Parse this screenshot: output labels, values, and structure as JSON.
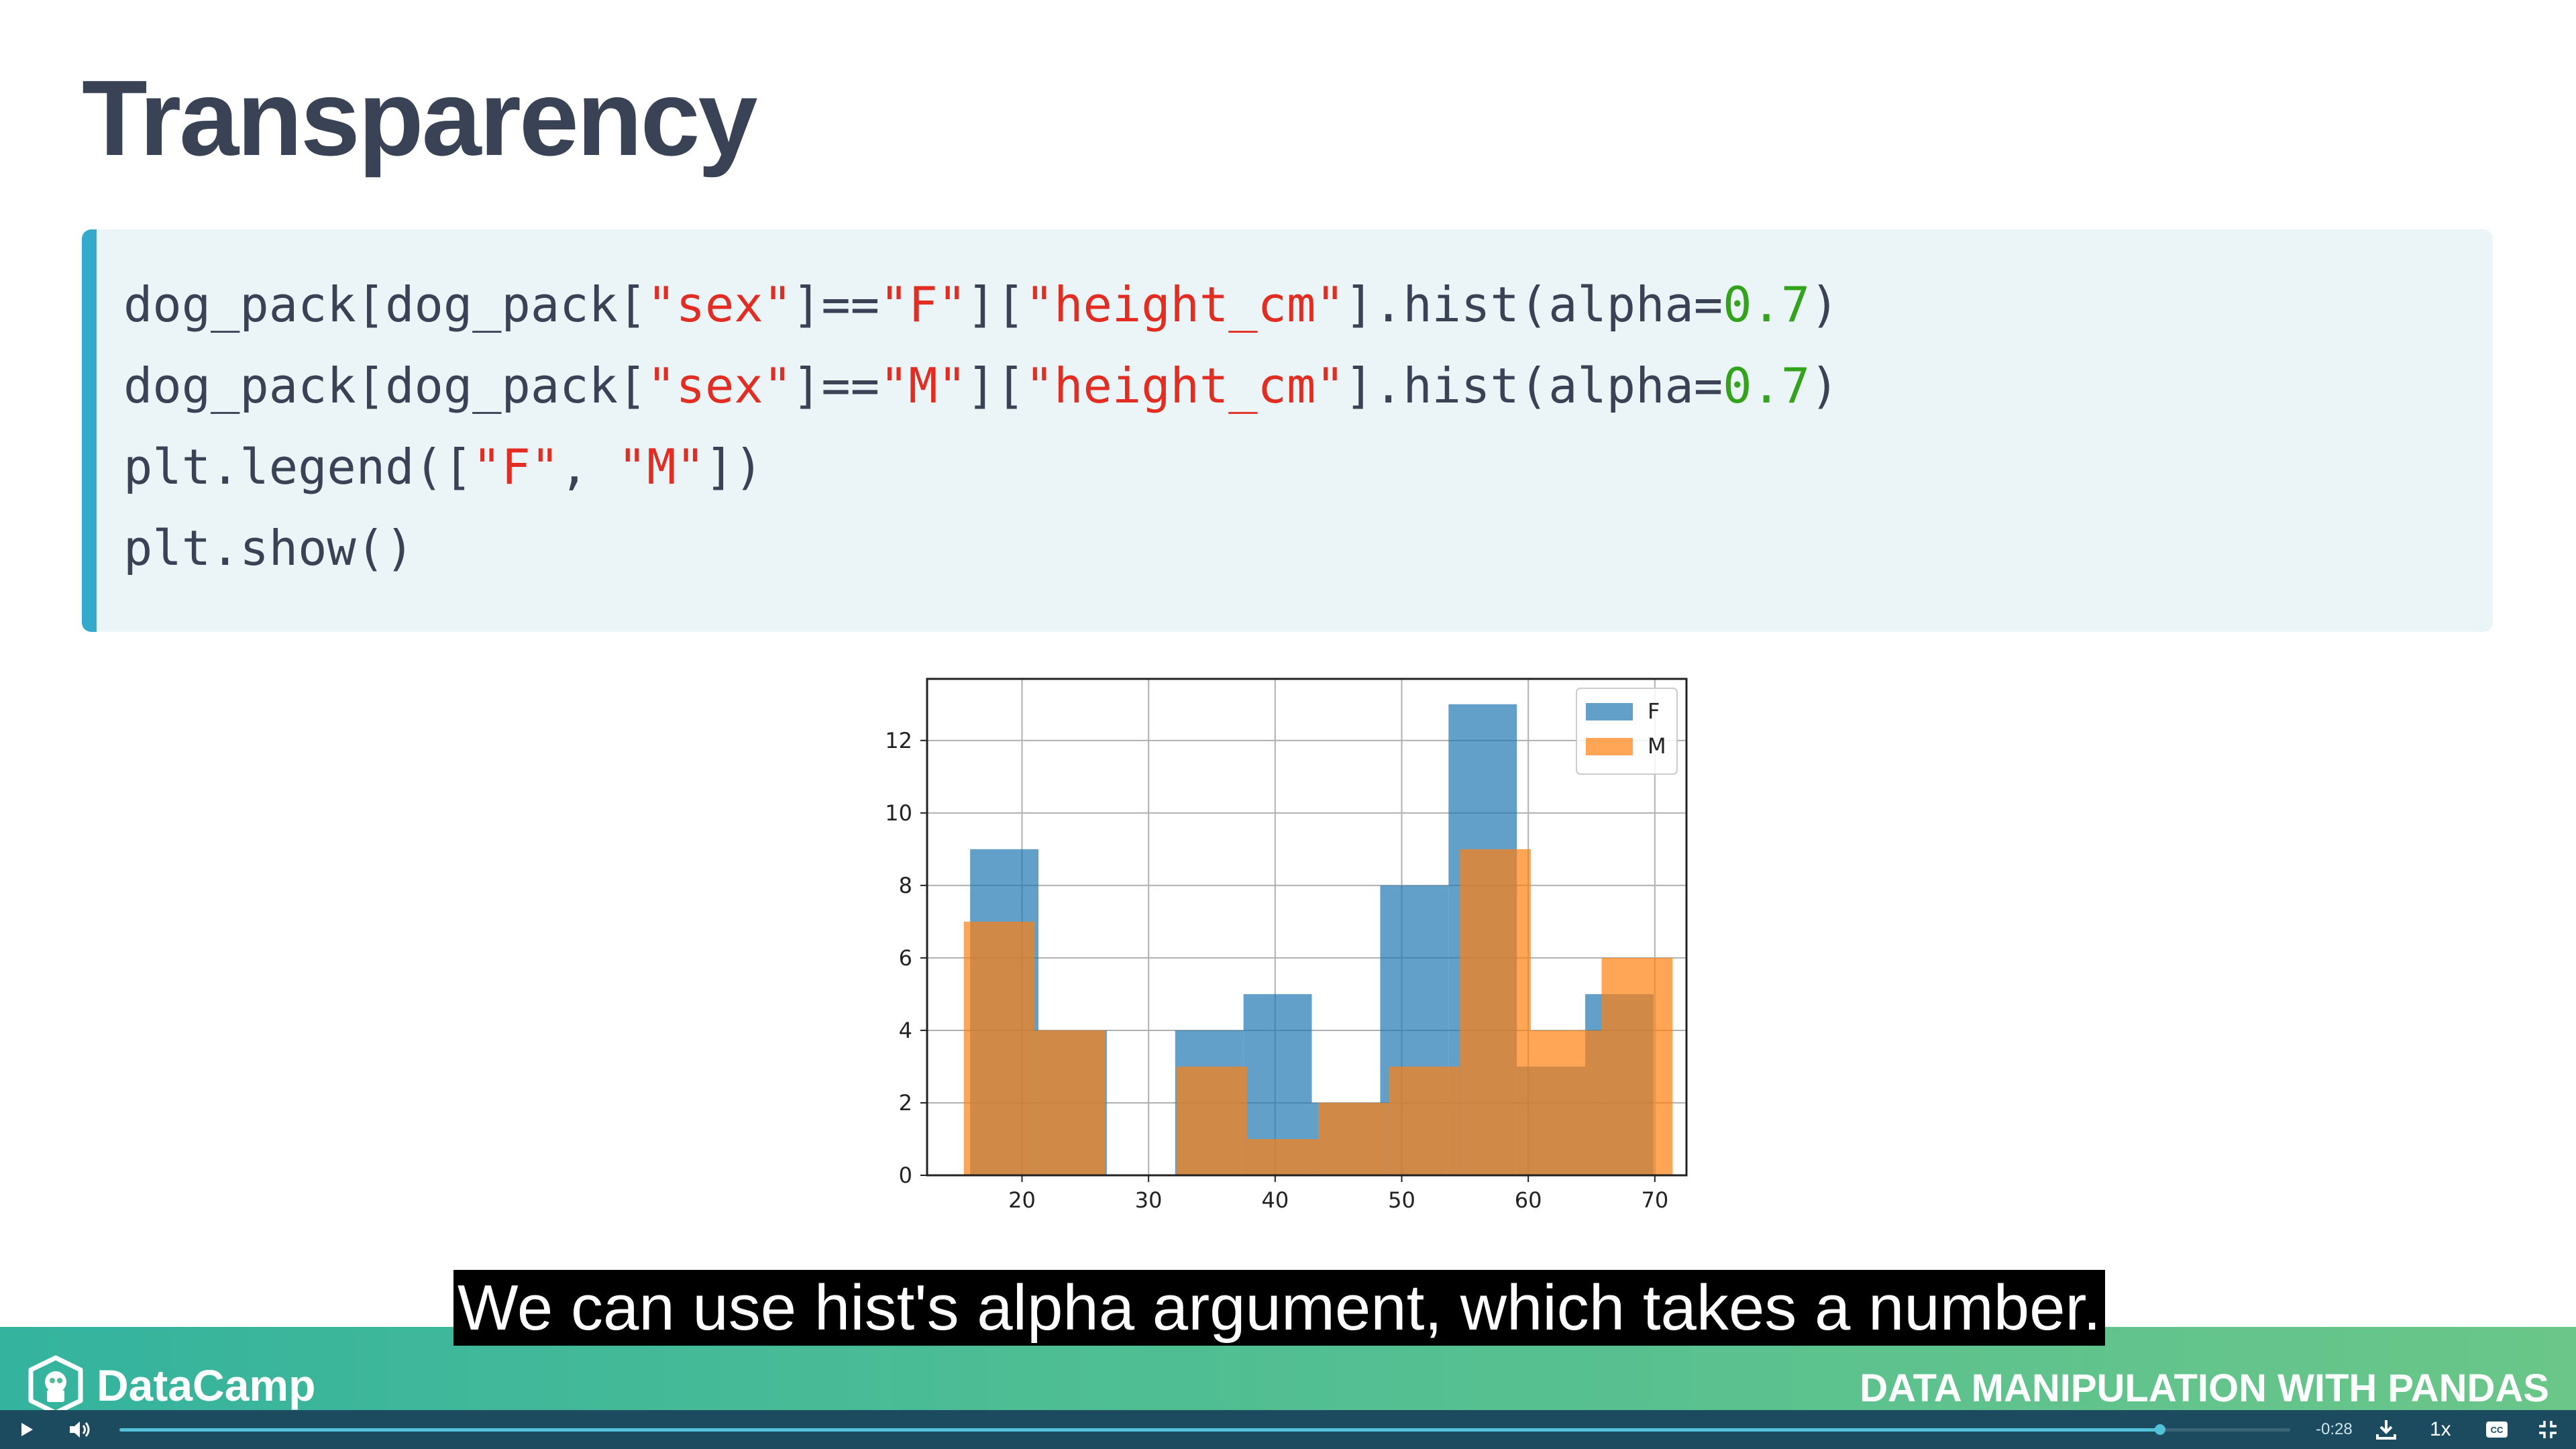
{
  "slide": {
    "title": "Transparency"
  },
  "code": {
    "line1": [
      {
        "t": "dog_pack[dog_pack[",
        "c": "plain"
      },
      {
        "t": "\"sex\"",
        "c": "str"
      },
      {
        "t": "]==",
        "c": "plain"
      },
      {
        "t": "\"F\"",
        "c": "str"
      },
      {
        "t": "][",
        "c": "plain"
      },
      {
        "t": "\"height_cm\"",
        "c": "str"
      },
      {
        "t": "].hist(alpha=",
        "c": "plain"
      },
      {
        "t": "0.7",
        "c": "num"
      },
      {
        "t": ")",
        "c": "plain"
      }
    ],
    "line2": [
      {
        "t": "dog_pack[dog_pack[",
        "c": "plain"
      },
      {
        "t": "\"sex\"",
        "c": "str"
      },
      {
        "t": "]==",
        "c": "plain"
      },
      {
        "t": "\"M\"",
        "c": "str"
      },
      {
        "t": "][",
        "c": "plain"
      },
      {
        "t": "\"height_cm\"",
        "c": "str"
      },
      {
        "t": "].hist(alpha=",
        "c": "plain"
      },
      {
        "t": "0.7",
        "c": "num"
      },
      {
        "t": ")",
        "c": "plain"
      }
    ],
    "line3": [
      {
        "t": "plt.legend([",
        "c": "plain"
      },
      {
        "t": "\"F\"",
        "c": "str"
      },
      {
        "t": ", ",
        "c": "plain"
      },
      {
        "t": "\"M\"",
        "c": "str"
      },
      {
        "t": "])",
        "c": "plain"
      }
    ],
    "line4": [
      {
        "t": "plt.show()",
        "c": "plain"
      }
    ]
  },
  "chart_data": {
    "type": "bar",
    "title": "",
    "xlabel": "",
    "ylabel": "",
    "xlim": [
      12.5,
      72.5
    ],
    "ylim": [
      0,
      13.7
    ],
    "xticks": [
      "20",
      "30",
      "40",
      "50",
      "60",
      "70"
    ],
    "yticks": [
      "0",
      "2",
      "4",
      "6",
      "8",
      "10",
      "12"
    ],
    "grid": true,
    "legend_position": "top-right",
    "series": [
      {
        "name": "F",
        "color": "#1f77b4",
        "alpha": 0.7,
        "bins": [
          {
            "x0": 15.9,
            "x1": 21.3,
            "y": 9
          },
          {
            "x0": 21.3,
            "x1": 26.7,
            "y": 4
          },
          {
            "x0": 26.7,
            "x1": 32.1,
            "y": 0
          },
          {
            "x0": 32.1,
            "x1": 37.5,
            "y": 4
          },
          {
            "x0": 37.5,
            "x1": 42.9,
            "y": 5
          },
          {
            "x0": 42.9,
            "x1": 48.3,
            "y": 2
          },
          {
            "x0": 48.3,
            "x1": 53.7,
            "y": 8
          },
          {
            "x0": 53.7,
            "x1": 59.1,
            "y": 13
          },
          {
            "x0": 59.1,
            "x1": 64.5,
            "y": 3
          },
          {
            "x0": 64.5,
            "x1": 69.9,
            "y": 5
          }
        ]
      },
      {
        "name": "M",
        "color": "#ff7f0e",
        "alpha": 0.7,
        "bins": [
          {
            "x0": 15.4,
            "x1": 21.0,
            "y": 7
          },
          {
            "x0": 21.0,
            "x1": 26.6,
            "y": 4
          },
          {
            "x0": 26.6,
            "x1": 32.2,
            "y": 0
          },
          {
            "x0": 32.2,
            "x1": 37.8,
            "y": 3
          },
          {
            "x0": 37.8,
            "x1": 43.4,
            "y": 1
          },
          {
            "x0": 43.4,
            "x1": 49.0,
            "y": 2
          },
          {
            "x0": 49.0,
            "x1": 54.6,
            "y": 3
          },
          {
            "x0": 54.6,
            "x1": 60.2,
            "y": 9
          },
          {
            "x0": 60.2,
            "x1": 65.8,
            "y": 4
          },
          {
            "x0": 65.8,
            "x1": 71.4,
            "y": 6
          }
        ]
      }
    ]
  },
  "caption": {
    "text": "We can use hist's alpha argument, which takes a number."
  },
  "footer": {
    "brand": "DataCamp",
    "course_title": "DATA MANIPULATION WITH PANDAS"
  },
  "player": {
    "time_remaining": "-0:28",
    "speed": "1x",
    "progress": 0.94,
    "icons": {
      "play": "play-icon",
      "volume": "volume-icon",
      "download": "download-icon",
      "captions": "captions-icon",
      "fullscreen": "exit-fullscreen-icon"
    }
  },
  "colors": {
    "title": "#3a4255",
    "code_bg": "#ebf4f7",
    "code_accent": "#33aacc",
    "string": "#e32c22",
    "number": "#33a31c",
    "footer_start": "#34b39e",
    "footer_end": "#6ac689",
    "player_bg": "#1c4a5e"
  }
}
